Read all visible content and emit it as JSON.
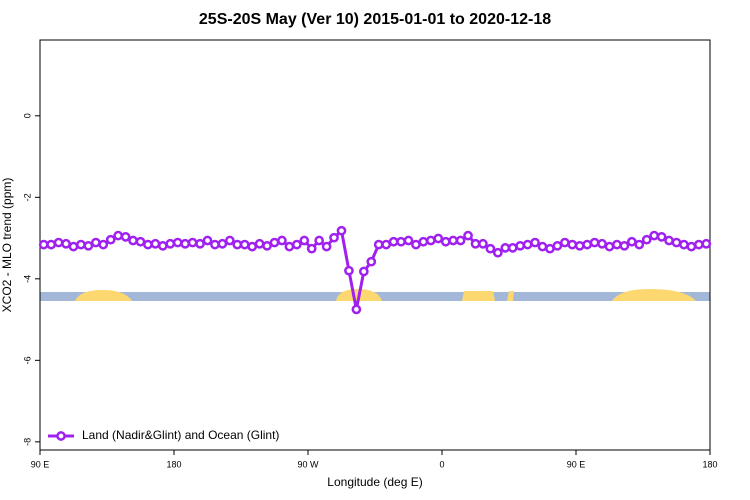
{
  "chart_data": {
    "type": "line",
    "title": "25S-20S May (Ver 10)   2015-01-01 to 2020-12-18",
    "x_label": "Longitude (deg E)",
    "y_label": "XCO2 - MLO trend (ppm)",
    "xlim": [
      90,
      540
    ],
    "xticks": [
      {
        "value": 90,
        "label": "90 E"
      },
      {
        "value": 180,
        "label": "180"
      },
      {
        "value": 270,
        "label": "90 W"
      },
      {
        "value": 360,
        "label": "0"
      },
      {
        "value": 450,
        "label": "90 E"
      },
      {
        "value": 540,
        "label": "180"
      }
    ],
    "ylim": [
      -8.2,
      1.86
    ],
    "yticks": [
      -8,
      -6,
      -4,
      -2,
      0
    ],
    "legend_position": "bottom-left",
    "x": [
      92.5,
      97.5,
      102.5,
      107.5,
      112.5,
      117.5,
      122.5,
      127.5,
      132.5,
      137.5,
      142.5,
      147.5,
      152.5,
      157.5,
      162.5,
      167.5,
      172.5,
      177.5,
      182.5,
      187.5,
      192.5,
      197.5,
      202.5,
      207.5,
      212.5,
      217.5,
      222.5,
      227.5,
      232.5,
      237.5,
      242.5,
      247.5,
      252.5,
      257.5,
      262.5,
      267.5,
      272.5,
      277.5,
      282.5,
      287.5,
      292.5,
      297.5,
      302.5,
      307.5,
      312.5,
      317.5,
      322.5,
      327.5,
      332.5,
      337.5,
      342.5,
      347.5,
      352.5,
      357.5,
      362.5,
      367.5,
      372.5,
      377.5,
      382.5,
      387.5,
      392.5,
      397.5,
      402.5,
      407.5,
      412.5,
      417.5,
      422.5,
      427.5,
      432.5,
      437.5,
      442.5,
      447.5,
      452.5,
      457.5,
      462.5,
      467.5,
      472.5,
      477.5,
      482.5,
      487.5,
      492.5,
      497.5,
      502.5,
      507.5,
      512.5,
      517.5,
      522.5,
      527.5,
      532.5,
      537.5
    ],
    "series": [
      {
        "name": "Land (Nadir&Glint) and Ocean (Glint)",
        "color": "#a020f0",
        "values": [
          -3.16,
          -3.16,
          -3.11,
          -3.14,
          -3.21,
          -3.16,
          -3.19,
          -3.11,
          -3.16,
          -3.04,
          -2.94,
          -2.97,
          -3.06,
          -3.09,
          -3.16,
          -3.14,
          -3.19,
          -3.14,
          -3.11,
          -3.14,
          -3.11,
          -3.14,
          -3.06,
          -3.16,
          -3.14,
          -3.06,
          -3.16,
          -3.16,
          -3.21,
          -3.14,
          -3.19,
          -3.11,
          -3.06,
          -3.21,
          -3.16,
          -3.06,
          -3.26,
          -3.06,
          -3.21,
          -2.99,
          -2.82,
          -3.8,
          -4.75,
          -3.82,
          -3.58,
          -3.16,
          -3.16,
          -3.09,
          -3.09,
          -3.06,
          -3.16,
          -3.09,
          -3.06,
          -3.01,
          -3.09,
          -3.06,
          -3.06,
          -2.94,
          -3.14,
          -3.14,
          -3.26,
          -3.36,
          -3.24,
          -3.24,
          -3.19,
          -3.16,
          -3.11,
          -3.21,
          -3.26,
          -3.19,
          -3.11,
          -3.16,
          -3.19,
          -3.16,
          -3.11,
          -3.14,
          -3.21,
          -3.16,
          -3.19,
          -3.09,
          -3.16,
          -3.04,
          -2.94,
          -2.97,
          -3.06,
          -3.11,
          -3.16,
          -3.21,
          -3.16,
          -3.14
        ]
      }
    ]
  }
}
